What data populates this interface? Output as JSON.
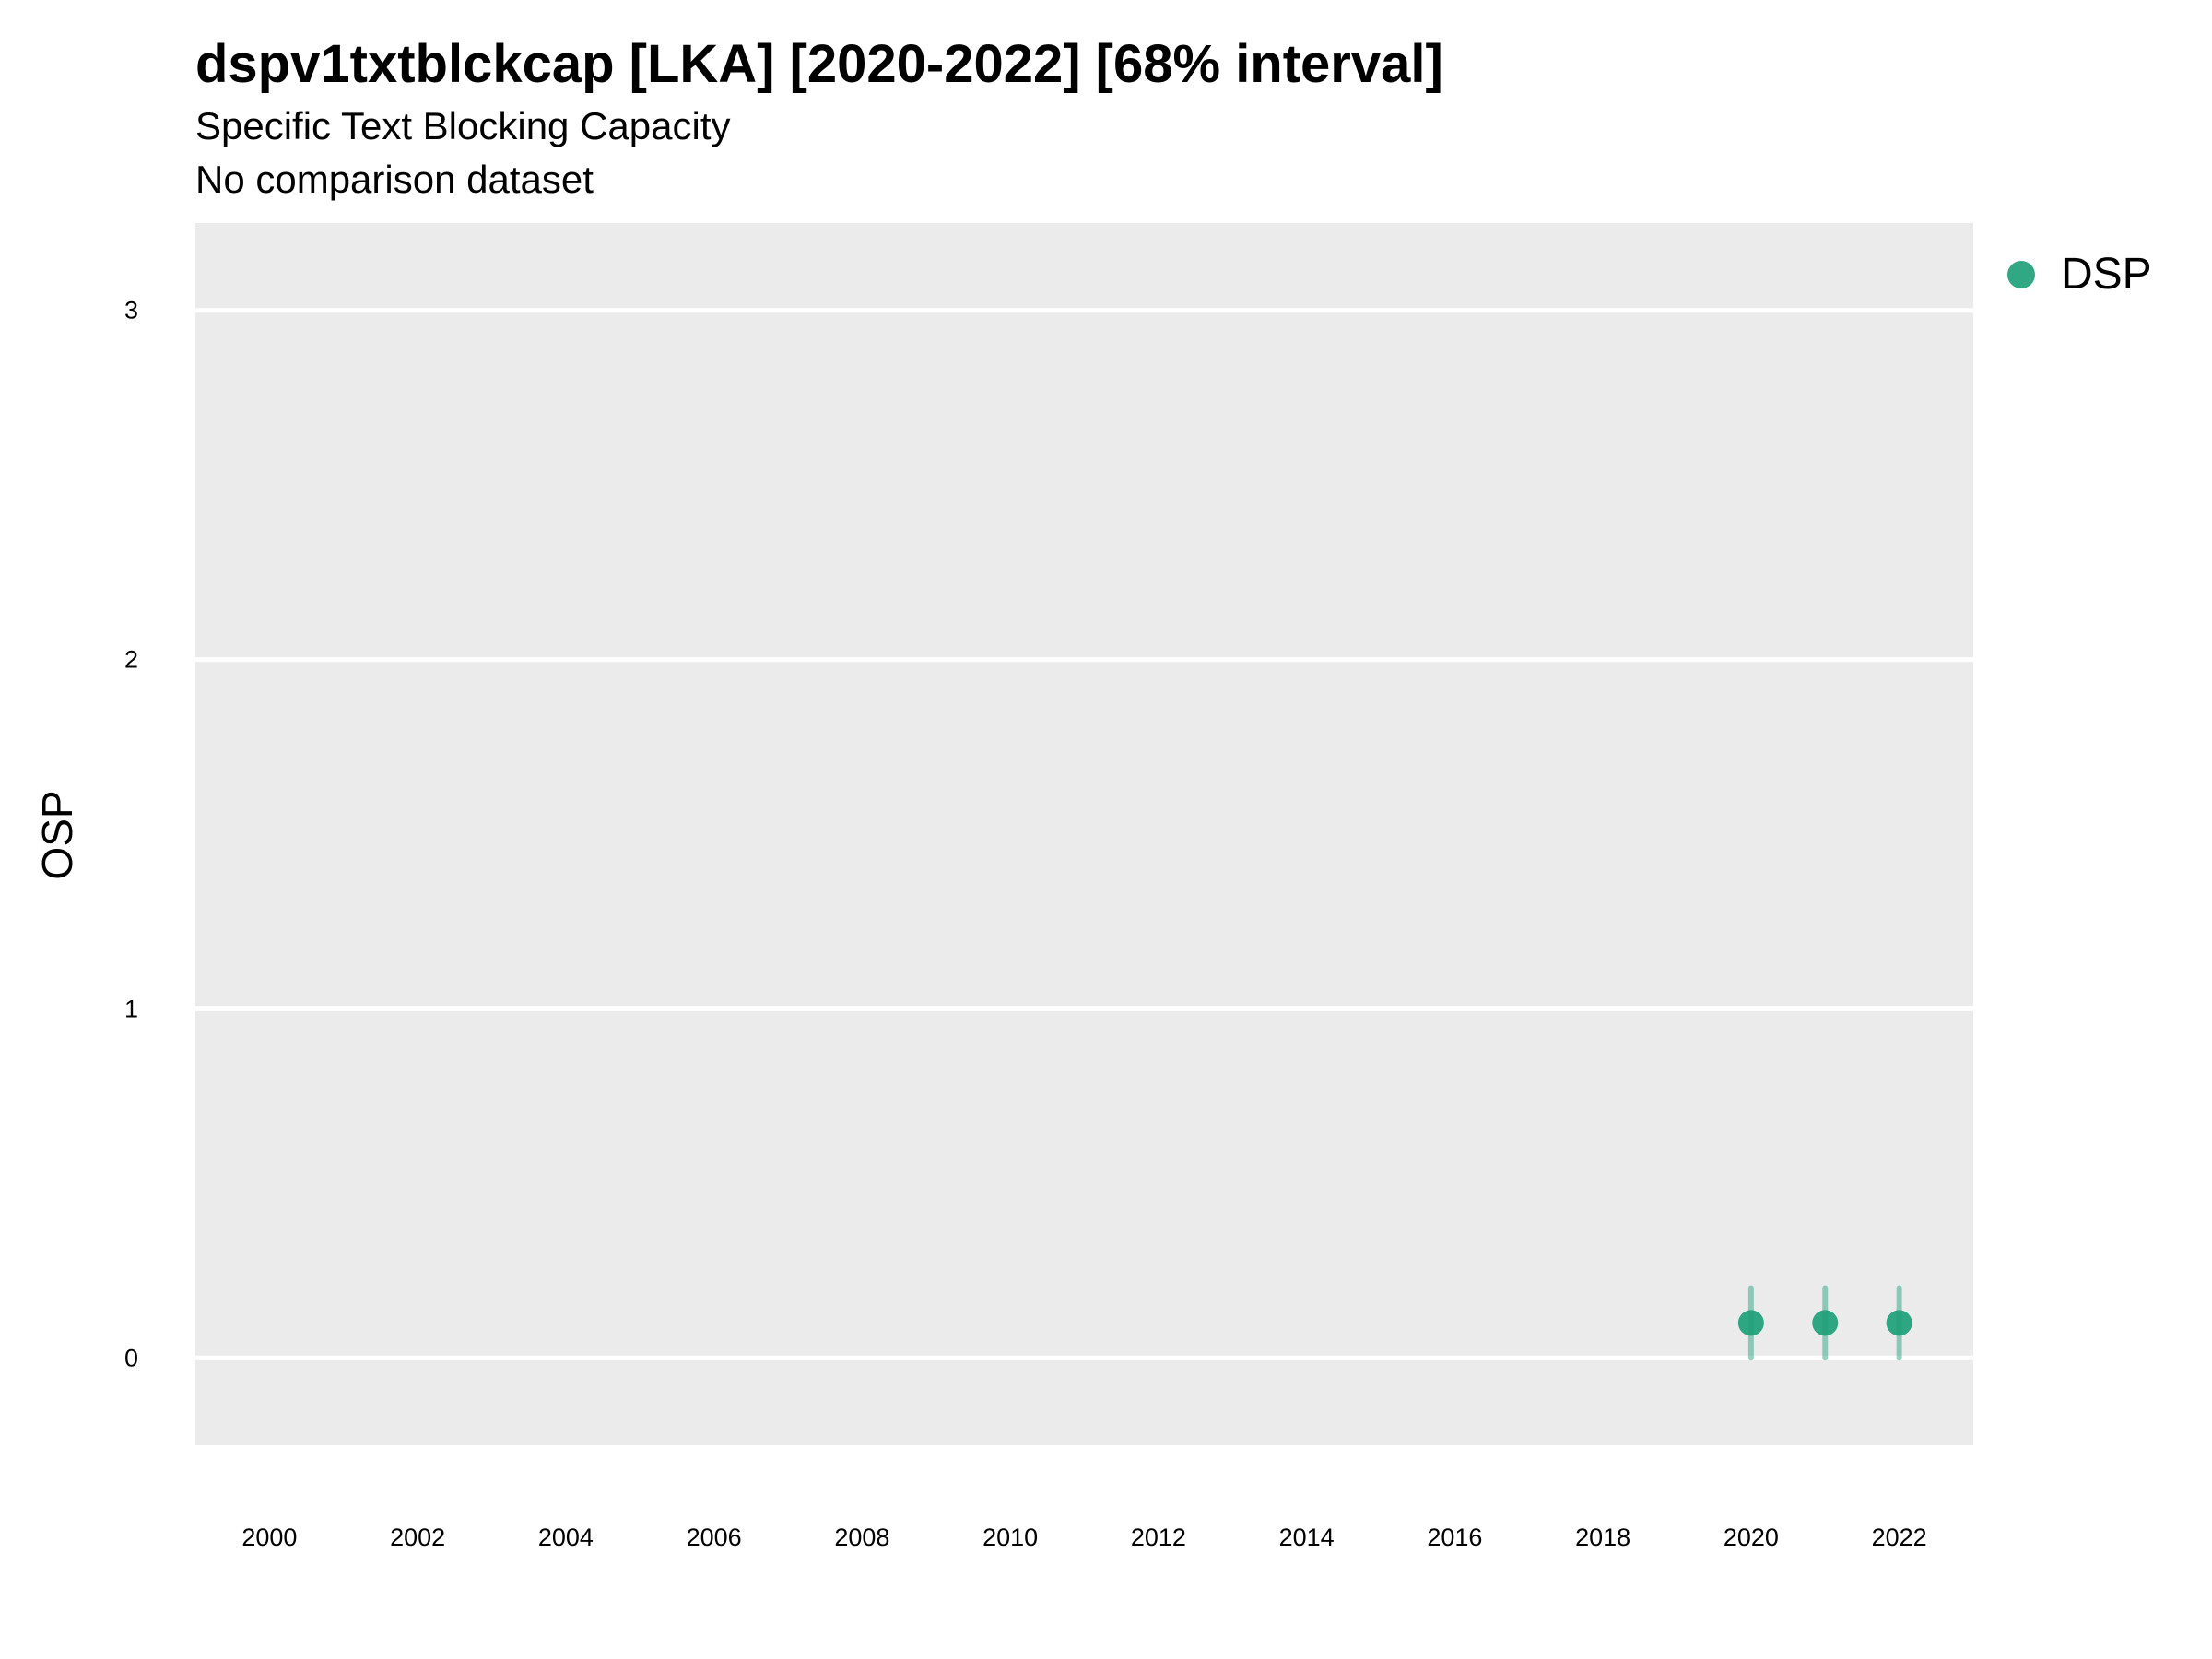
{
  "chart_data": {
    "type": "scatter",
    "title": "dspv1txtblckcap [LKA] [2020-2022] [68% interval]",
    "subtitle": "Specific Text Blocking Capacity",
    "subtitle2": "No comparison dataset",
    "xlabel": "",
    "ylabel": "OSP",
    "xlim": [
      1999,
      2023
    ],
    "ylim": [
      -0.25,
      3.25
    ],
    "x_ticks": [
      2000,
      2002,
      2004,
      2006,
      2008,
      2010,
      2012,
      2014,
      2016,
      2018,
      2020,
      2022
    ],
    "y_ticks": [
      0,
      1,
      2,
      3
    ],
    "grid": "horizontal",
    "legend_position": "right",
    "series": [
      {
        "name": "DSP",
        "color": "#1b9e77",
        "points": [
          {
            "x": 2020,
            "y": 0.1,
            "low": 0.0,
            "high": 0.2
          },
          {
            "x": 2021,
            "y": 0.1,
            "low": 0.0,
            "high": 0.2
          },
          {
            "x": 2022,
            "y": 0.1,
            "low": 0.0,
            "high": 0.2
          }
        ]
      }
    ]
  }
}
